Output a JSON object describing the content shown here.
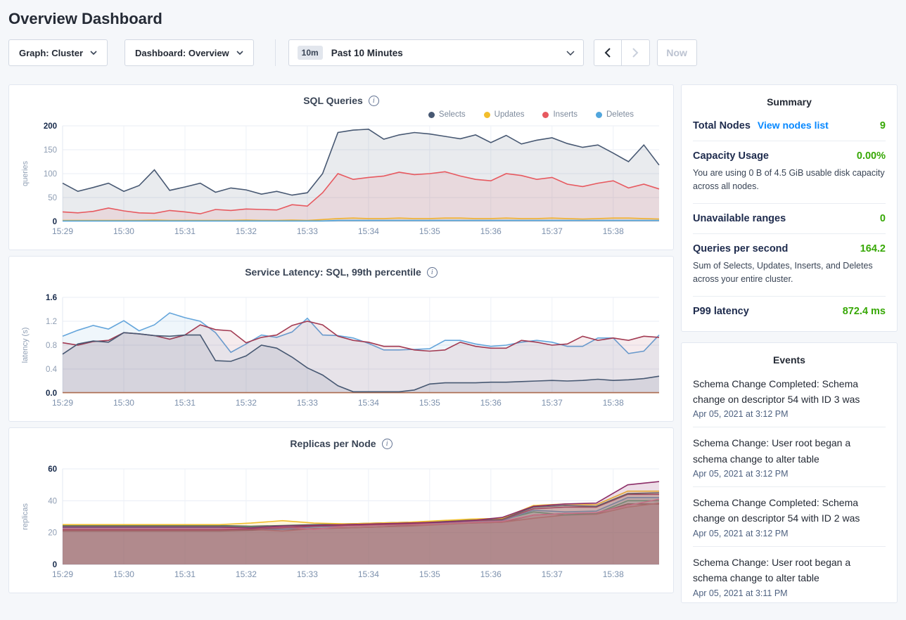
{
  "page": {
    "title": "Overview Dashboard"
  },
  "toolbar": {
    "graph_label": "Graph: Cluster",
    "dashboard_label": "Dashboard: Overview",
    "time_badge": "10m",
    "time_label": "Past 10 Minutes",
    "now_label": "Now"
  },
  "summary": {
    "title": "Summary",
    "rows": [
      {
        "label": "Total Nodes",
        "link": "View nodes list",
        "value": "9"
      },
      {
        "label": "Capacity Usage",
        "value": "0.00%",
        "description": "You are using 0 B of 4.5 GiB usable disk capacity across all nodes."
      },
      {
        "label": "Unavailable ranges",
        "value": "0"
      },
      {
        "label": "Queries per second",
        "value": "164.2",
        "description": "Sum of Selects, Updates, Inserts, and Deletes across your entire cluster."
      },
      {
        "label": "P99 latency",
        "value": "872.4 ms"
      }
    ]
  },
  "events": {
    "title": "Events",
    "items": [
      {
        "text": "Schema Change Completed: Schema change on descriptor 54 with ID 3 was",
        "timestamp": "Apr 05, 2021 at 3:12 PM"
      },
      {
        "text": "Schema Change: User root began a schema change to alter table",
        "timestamp": "Apr 05, 2021 at 3:12 PM"
      },
      {
        "text": "Schema Change Completed: Schema change on descriptor 54 with ID 2 was",
        "timestamp": "Apr 05, 2021 at 3:12 PM"
      },
      {
        "text": "Schema Change: User root began a schema change to alter table",
        "timestamp": "Apr 05, 2021 at 3:11 PM"
      }
    ]
  },
  "colors": {
    "accent_link_blue": "#0788FF",
    "value_green": "#37A806",
    "selects": "#475872",
    "updates": "#F2BE2C",
    "inserts": "#E7595F",
    "deletes": "#51A6DD"
  },
  "chart_data": [
    {
      "type": "area",
      "title": "SQL Queries",
      "ylabel": "queries",
      "ylim": [
        0,
        200
      ],
      "ytick_values": [
        0,
        50,
        100,
        150,
        200
      ],
      "ytick_labels": [
        "0",
        "50",
        "100",
        "150",
        "200"
      ],
      "x_tick_labels": [
        "15:29",
        "15:30",
        "15:31",
        "15:32",
        "15:33",
        "15:34",
        "15:35",
        "15:36",
        "15:37",
        "15:38"
      ],
      "x_domain_minutes": 9.75,
      "grid": true,
      "legend": true,
      "legend_position": "top-right",
      "fill_opacity": 0.12,
      "series": [
        {
          "name": "Selects",
          "color": "#475872",
          "values": [
            80,
            63,
            71,
            80,
            63,
            75,
            108,
            65,
            72,
            80,
            61,
            70,
            66,
            57,
            63,
            55,
            60,
            100,
            186,
            191,
            193,
            172,
            181,
            186,
            183,
            178,
            173,
            181,
            165,
            180,
            162,
            170,
            175,
            163,
            155,
            160,
            143,
            125,
            160,
            118
          ]
        },
        {
          "name": "Updates",
          "color": "#F2BE2C",
          "values": [
            2,
            2,
            2,
            2,
            2,
            2,
            3,
            2,
            2,
            2,
            2,
            2,
            3,
            2,
            2,
            3,
            2,
            4,
            6,
            7,
            6,
            6,
            7,
            6,
            6,
            7,
            7,
            6,
            6,
            7,
            6,
            6,
            7,
            6,
            5,
            6,
            7,
            7,
            6,
            5
          ]
        },
        {
          "name": "Inserts",
          "color": "#E7595F",
          "values": [
            20,
            18,
            21,
            28,
            22,
            18,
            17,
            23,
            20,
            16,
            25,
            23,
            26,
            25,
            24,
            35,
            32,
            60,
            100,
            88,
            92,
            95,
            103,
            98,
            100,
            104,
            95,
            88,
            85,
            100,
            96,
            88,
            92,
            78,
            73,
            80,
            85,
            70,
            78,
            68
          ]
        },
        {
          "name": "Deletes",
          "color": "#51A6DD",
          "values": [
            1,
            1,
            1,
            1,
            1,
            1,
            1,
            1,
            1,
            1,
            1,
            1,
            1,
            1,
            1,
            1,
            1,
            1,
            2,
            2,
            2,
            2,
            2,
            2,
            2,
            2,
            2,
            2,
            2,
            2,
            2,
            2,
            2,
            2,
            2,
            2,
            2,
            2,
            2,
            2
          ]
        }
      ]
    },
    {
      "type": "area",
      "title": "Service Latency: SQL, 99th percentile",
      "ylabel": "latency (s)",
      "ylim": [
        0,
        1.6
      ],
      "ytick_values": [
        0,
        0.4,
        0.8,
        1.2,
        1.6
      ],
      "ytick_labels": [
        "0.0",
        "0.4",
        "0.8",
        "1.2",
        "1.6"
      ],
      "x_tick_labels": [
        "15:29",
        "15:30",
        "15:31",
        "15:32",
        "15:33",
        "15:34",
        "15:35",
        "15:36",
        "15:37",
        "15:38"
      ],
      "x_domain_minutes": 9.75,
      "grid": true,
      "legend": false,
      "fill_opacity": 0.1,
      "series": [
        {
          "color": "#C2703F",
          "values": [
            0.005,
            0.005
          ]
        },
        {
          "color": "#64A5DB",
          "values": [
            0.95,
            1.05,
            1.13,
            1.07,
            1.21,
            1.04,
            1.14,
            1.34,
            1.26,
            1.2,
            1.01,
            0.68,
            0.82,
            0.97,
            0.93,
            1.02,
            1.25,
            0.97,
            0.96,
            0.92,
            0.83,
            0.72,
            0.72,
            0.73,
            0.74,
            0.88,
            0.88,
            0.82,
            0.78,
            0.8,
            0.85,
            0.88,
            0.85,
            0.78,
            0.78,
            0.92,
            0.92,
            0.66,
            0.7,
            0.97
          ]
        },
        {
          "color": "#A23A52",
          "values": [
            0.84,
            0.8,
            0.86,
            0.88,
            1.01,
            0.99,
            0.96,
            0.9,
            0.97,
            1.14,
            1.06,
            1.04,
            0.84,
            0.93,
            0.97,
            1.13,
            1.2,
            1.14,
            0.95,
            0.88,
            0.85,
            0.78,
            0.78,
            0.72,
            0.7,
            0.72,
            0.85,
            0.78,
            0.75,
            0.75,
            0.88,
            0.85,
            0.8,
            0.82,
            0.95,
            0.88,
            0.92,
            0.88,
            0.95,
            0.93
          ]
        },
        {
          "color": "#475872",
          "values": [
            0.65,
            0.82,
            0.87,
            0.85,
            1.01,
            0.99,
            0.96,
            0.95,
            0.97,
            0.97,
            0.54,
            0.53,
            0.62,
            0.8,
            0.75,
            0.6,
            0.42,
            0.3,
            0.12,
            0.02,
            0.02,
            0.02,
            0.02,
            0.05,
            0.15,
            0.17,
            0.17,
            0.17,
            0.18,
            0.18,
            0.19,
            0.2,
            0.21,
            0.2,
            0.21,
            0.23,
            0.21,
            0.22,
            0.24,
            0.28
          ]
        }
      ]
    },
    {
      "type": "area",
      "title": "Replicas per Node",
      "ylabel": "replicas",
      "ylim": [
        0,
        60
      ],
      "ytick_values": [
        0,
        20,
        40,
        60
      ],
      "ytick_labels": [
        "0",
        "20",
        "40",
        "60"
      ],
      "x_tick_labels": [
        "15:29",
        "15:30",
        "15:31",
        "15:32",
        "15:33",
        "15:34",
        "15:35",
        "15:36",
        "15:37",
        "15:38"
      ],
      "x_domain_minutes": 9.75,
      "grid": true,
      "legend": false,
      "fill_opacity": 0.16,
      "series": [
        {
          "color": "#8F4A45",
          "values": [
            21,
            21,
            21,
            21,
            21,
            21,
            21.5,
            22,
            22.5,
            23,
            23.5,
            24.5,
            25.5,
            26,
            26.5,
            31,
            32,
            32,
            38,
            38
          ]
        },
        {
          "color": "#E5726F",
          "values": [
            21.5,
            21.5,
            21.5,
            21.5,
            21.5,
            21.5,
            22,
            21,
            22.5,
            23,
            23.5,
            24,
            25,
            26,
            26.5,
            29,
            31,
            31.5,
            36,
            38.5
          ]
        },
        {
          "color": "#49B27D",
          "values": [
            24,
            24,
            24,
            24,
            24,
            24,
            23.5,
            24,
            24.5,
            25,
            25.5,
            26,
            27,
            27.5,
            28,
            33,
            31,
            32,
            40,
            40
          ]
        },
        {
          "color": "#5BA8DF",
          "values": [
            23,
            23,
            23,
            23,
            23,
            23,
            22.5,
            22,
            23.5,
            24,
            24.5,
            25,
            26,
            27,
            27.5,
            34,
            33,
            33.5,
            42,
            42
          ]
        },
        {
          "color": "#EE7FB1",
          "values": [
            22.5,
            22.5,
            22.5,
            22.5,
            22.5,
            22.5,
            23,
            23.5,
            22,
            24,
            24.5,
            25,
            25.5,
            26.5,
            27,
            31,
            32,
            32.5,
            37,
            41
          ]
        },
        {
          "color": "#A8376B",
          "values": [
            21.8,
            21.8,
            21.8,
            21.8,
            21.8,
            21.8,
            22.2,
            23,
            24,
            24.5,
            25,
            25.5,
            26.5,
            27.5,
            28,
            35,
            36,
            36,
            44,
            44
          ]
        },
        {
          "color": "#475872",
          "values": [
            24.5,
            24.5,
            24.5,
            24.5,
            24.5,
            24.5,
            24,
            24.5,
            25,
            25.5,
            26,
            26.5,
            27,
            28,
            28.5,
            36,
            37,
            36.5,
            44.5,
            45
          ]
        },
        {
          "color": "#F2BE2C",
          "values": [
            25,
            25,
            25,
            25,
            25,
            25,
            26,
            27.5,
            26,
            25.5,
            26,
            26.5,
            27.5,
            28.5,
            29,
            37,
            38,
            37.5,
            46,
            46
          ]
        },
        {
          "color": "#8C2E68",
          "values": [
            23.5,
            23.5,
            23.5,
            23.5,
            23.5,
            23.5,
            23,
            24,
            24.5,
            25,
            25.5,
            26,
            26.5,
            27.5,
            29.5,
            36.5,
            38,
            38.5,
            50,
            52
          ]
        }
      ]
    }
  ]
}
